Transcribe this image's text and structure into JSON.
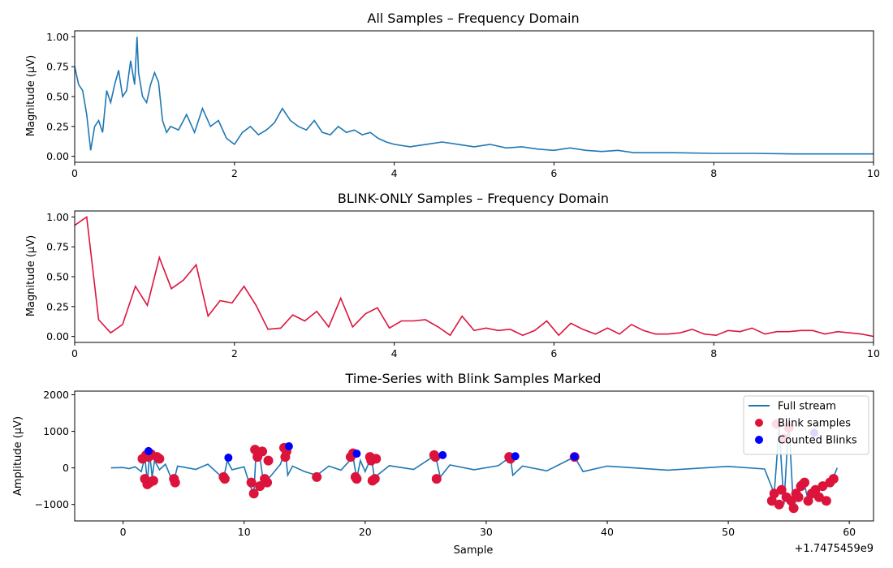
{
  "chart_data": [
    {
      "type": "line",
      "title": "All Samples – Frequency Domain",
      "xlabel": "",
      "ylabel": "Magnitude (µV)",
      "xlim": [
        0,
        10
      ],
      "ylim": [
        -0.05,
        1.05
      ],
      "xticks": [
        0,
        2,
        4,
        6,
        8,
        10
      ],
      "yticks": [
        0.0,
        0.25,
        0.5,
        0.75,
        1.0
      ],
      "xtick_labels": [
        "0",
        "2",
        "4",
        "6",
        "8",
        "10"
      ],
      "ytick_labels": [
        "0.00",
        "0.25",
        "0.50",
        "0.75",
        "1.00"
      ],
      "colors": {
        "line": "#1f77b4"
      },
      "series": [
        {
          "x": [
            0,
            0.05,
            0.1,
            0.15,
            0.2,
            0.25,
            0.3,
            0.35,
            0.4,
            0.45,
            0.5,
            0.55,
            0.6,
            0.65,
            0.7,
            0.75,
            0.78,
            0.8,
            0.85,
            0.9,
            0.95,
            1.0,
            1.05,
            1.1,
            1.15,
            1.2,
            1.3,
            1.4,
            1.5,
            1.6,
            1.7,
            1.8,
            1.9,
            2.0,
            2.1,
            2.2,
            2.3,
            2.4,
            2.5,
            2.6,
            2.7,
            2.8,
            2.9,
            3.0,
            3.1,
            3.2,
            3.3,
            3.4,
            3.5,
            3.6,
            3.7,
            3.8,
            3.9,
            4.0,
            4.2,
            4.4,
            4.6,
            4.8,
            5.0,
            5.2,
            5.4,
            5.6,
            5.8,
            6.0,
            6.2,
            6.4,
            6.6,
            6.8,
            7.0,
            7.5,
            8.0,
            8.5,
            9.0,
            9.5,
            10.0
          ],
          "y": [
            0.75,
            0.6,
            0.55,
            0.35,
            0.05,
            0.25,
            0.3,
            0.2,
            0.55,
            0.45,
            0.6,
            0.72,
            0.5,
            0.55,
            0.8,
            0.6,
            1.0,
            0.7,
            0.5,
            0.45,
            0.6,
            0.7,
            0.62,
            0.3,
            0.2,
            0.25,
            0.22,
            0.35,
            0.2,
            0.4,
            0.25,
            0.3,
            0.15,
            0.1,
            0.2,
            0.25,
            0.18,
            0.22,
            0.28,
            0.4,
            0.3,
            0.25,
            0.22,
            0.3,
            0.2,
            0.18,
            0.25,
            0.2,
            0.22,
            0.18,
            0.2,
            0.15,
            0.12,
            0.1,
            0.08,
            0.1,
            0.12,
            0.1,
            0.08,
            0.1,
            0.07,
            0.08,
            0.06,
            0.05,
            0.07,
            0.05,
            0.04,
            0.05,
            0.03,
            0.03,
            0.025,
            0.025,
            0.02,
            0.02,
            0.02
          ]
        }
      ]
    },
    {
      "type": "line",
      "title": "BLINK-ONLY Samples – Frequency Domain",
      "xlabel": "",
      "ylabel": "Magnitude (µV)",
      "xlim": [
        0,
        10
      ],
      "ylim": [
        -0.05,
        1.05
      ],
      "xticks": [
        0,
        2,
        4,
        6,
        8,
        10
      ],
      "yticks": [
        0.0,
        0.25,
        0.5,
        0.75,
        1.0
      ],
      "xtick_labels": [
        "0",
        "2",
        "4",
        "6",
        "8",
        "10"
      ],
      "ytick_labels": [
        "0.00",
        "0.25",
        "0.50",
        "0.75",
        "1.00"
      ],
      "colors": {
        "line": "#dc143c"
      },
      "series": [
        {
          "x": [
            0,
            0.15,
            0.3,
            0.45,
            0.6,
            0.76,
            0.91,
            1.06,
            1.21,
            1.36,
            1.52,
            1.67,
            1.82,
            1.97,
            2.12,
            2.27,
            2.42,
            2.58,
            2.73,
            2.88,
            3.03,
            3.18,
            3.33,
            3.48,
            3.64,
            3.79,
            3.94,
            4.09,
            4.24,
            4.39,
            4.55,
            4.7,
            4.85,
            5.0,
            5.15,
            5.3,
            5.45,
            5.61,
            5.76,
            5.91,
            6.06,
            6.21,
            6.36,
            6.52,
            6.67,
            6.82,
            6.97,
            7.12,
            7.27,
            7.42,
            7.58,
            7.73,
            7.88,
            8.03,
            8.18,
            8.33,
            8.48,
            8.64,
            8.79,
            8.94,
            9.09,
            9.24,
            9.39,
            9.55,
            9.7,
            9.85,
            10.0
          ],
          "y": [
            0.93,
            1.0,
            0.14,
            0.03,
            0.1,
            0.42,
            0.26,
            0.66,
            0.4,
            0.47,
            0.6,
            0.17,
            0.3,
            0.28,
            0.42,
            0.26,
            0.06,
            0.07,
            0.18,
            0.13,
            0.21,
            0.08,
            0.32,
            0.08,
            0.19,
            0.24,
            0.07,
            0.13,
            0.13,
            0.14,
            0.08,
            0.01,
            0.17,
            0.05,
            0.07,
            0.05,
            0.06,
            0.01,
            0.05,
            0.13,
            0.01,
            0.11,
            0.06,
            0.02,
            0.07,
            0.02,
            0.1,
            0.05,
            0.02,
            0.02,
            0.03,
            0.06,
            0.02,
            0.01,
            0.05,
            0.04,
            0.07,
            0.02,
            0.04,
            0.04,
            0.05,
            0.05,
            0.02,
            0.04,
            0.03,
            0.02,
            0.0
          ]
        }
      ]
    },
    {
      "type": "scatter",
      "title": "Time-Series with Blink Samples Marked",
      "xlabel": "Sample",
      "ylabel": "Amplitude (µV)",
      "offset_text": "+1.7475459e9",
      "xlim": [
        -4,
        62
      ],
      "ylim": [
        -1450,
        2100
      ],
      "xticks": [
        0,
        10,
        20,
        30,
        40,
        50,
        60
      ],
      "yticks": [
        -1000,
        0,
        1000,
        2000
      ],
      "xtick_labels": [
        "0",
        "10",
        "20",
        "30",
        "40",
        "50",
        "60"
      ],
      "ytick_labels": [
        "−1000",
        "0",
        "1000",
        "2000"
      ],
      "legend": {
        "position": "upper-right",
        "items": [
          {
            "label": "Full stream",
            "kind": "line",
            "color": "#1f77b4"
          },
          {
            "label": "Blink samples",
            "kind": "marker",
            "color": "#dc143c"
          },
          {
            "label": "Counted Blinks",
            "kind": "marker",
            "color": "#0000ff"
          }
        ]
      },
      "colors": {
        "stream": "#1f77b4",
        "blink": "#dc143c",
        "counted": "#0000ff"
      },
      "stream": {
        "x": [
          -1,
          0,
          0.5,
          1,
          1.5,
          1.8,
          2.0,
          2.2,
          2.4,
          2.6,
          3.0,
          3.5,
          4.0,
          4.2,
          4.5,
          5,
          6,
          7,
          8,
          8.3,
          8.6,
          9,
          10,
          10.5,
          10.8,
          11.0,
          11.3,
          11.6,
          12,
          13,
          13.4,
          13.6,
          14,
          15,
          16,
          17,
          18,
          19.0,
          19.3,
          19.6,
          20,
          20.5,
          20.8,
          21,
          22,
          24,
          25.8,
          26.2,
          27,
          29,
          31,
          32.0,
          32.2,
          33,
          35,
          37.3,
          38,
          40,
          45,
          50,
          53,
          53.8,
          54.2,
          54.6,
          55.0,
          55.4,
          55.8,
          56.2,
          56.6,
          57,
          57.5,
          58,
          58.5,
          59
        ],
        "y": [
          0,
          10,
          -20,
          30,
          -100,
          300,
          -400,
          400,
          -250,
          200,
          -50,
          100,
          -300,
          -350,
          50,
          20,
          -40,
          100,
          -200,
          -300,
          200,
          -50,
          30,
          -500,
          -700,
          500,
          300,
          -400,
          -300,
          100,
          500,
          -200,
          50,
          -100,
          -200,
          50,
          -60,
          300,
          -300,
          200,
          -100,
          300,
          -350,
          -200,
          60,
          -40,
          350,
          -250,
          80,
          -50,
          60,
          300,
          -200,
          50,
          -80,
          300,
          -100,
          50,
          -60,
          40,
          -30,
          -700,
          1100,
          -1000,
          1300,
          -1200,
          -400,
          -300,
          -900,
          -800,
          -600,
          -500,
          -400,
          0
        ]
      },
      "blink_samples": {
        "x": [
          1.6,
          1.8,
          1.9,
          2.0,
          2.1,
          2.2,
          2.3,
          2.5,
          2.8,
          3.0,
          4.2,
          4.3,
          8.3,
          8.4,
          10.6,
          10.8,
          10.9,
          11.1,
          11.3,
          11.5,
          11.7,
          11.9,
          12.0,
          13.3,
          13.4,
          13.5,
          16.0,
          18.8,
          19.0,
          19.2,
          19.3,
          20.4,
          20.5,
          20.6,
          20.8,
          20.9,
          25.7,
          25.8,
          25.9,
          31.9,
          32.0,
          37.3,
          53.6,
          53.8,
          54.0,
          54.2,
          54.4,
          54.6,
          54.8,
          55.0,
          55.2,
          55.4,
          55.6,
          55.8,
          56.0,
          56.3,
          56.6,
          56.9,
          57.2,
          57.5,
          57.8,
          58.1,
          58.4,
          58.7
        ],
        "y": [
          250,
          -300,
          350,
          -450,
          300,
          -400,
          380,
          -350,
          300,
          250,
          -300,
          -400,
          -250,
          -300,
          -400,
          -700,
          500,
          300,
          -500,
          450,
          -300,
          -400,
          200,
          550,
          300,
          450,
          -250,
          300,
          400,
          -250,
          -300,
          300,
          200,
          -350,
          -300,
          250,
          350,
          300,
          -300,
          300,
          250,
          300,
          -900,
          -700,
          1200,
          -1000,
          -600,
          800,
          -800,
          1100,
          -900,
          -1100,
          -700,
          -800,
          -500,
          -400,
          -900,
          -700,
          -600,
          -800,
          -500,
          -900,
          -400,
          -300
        ]
      },
      "counted_blinks": {
        "x": [
          2.1,
          8.7,
          13.7,
          19.3,
          26.4,
          32.4,
          37.3,
          57.1
        ],
        "y": [
          460,
          280,
          590,
          390,
          350,
          320,
          310,
          960
        ]
      }
    }
  ]
}
